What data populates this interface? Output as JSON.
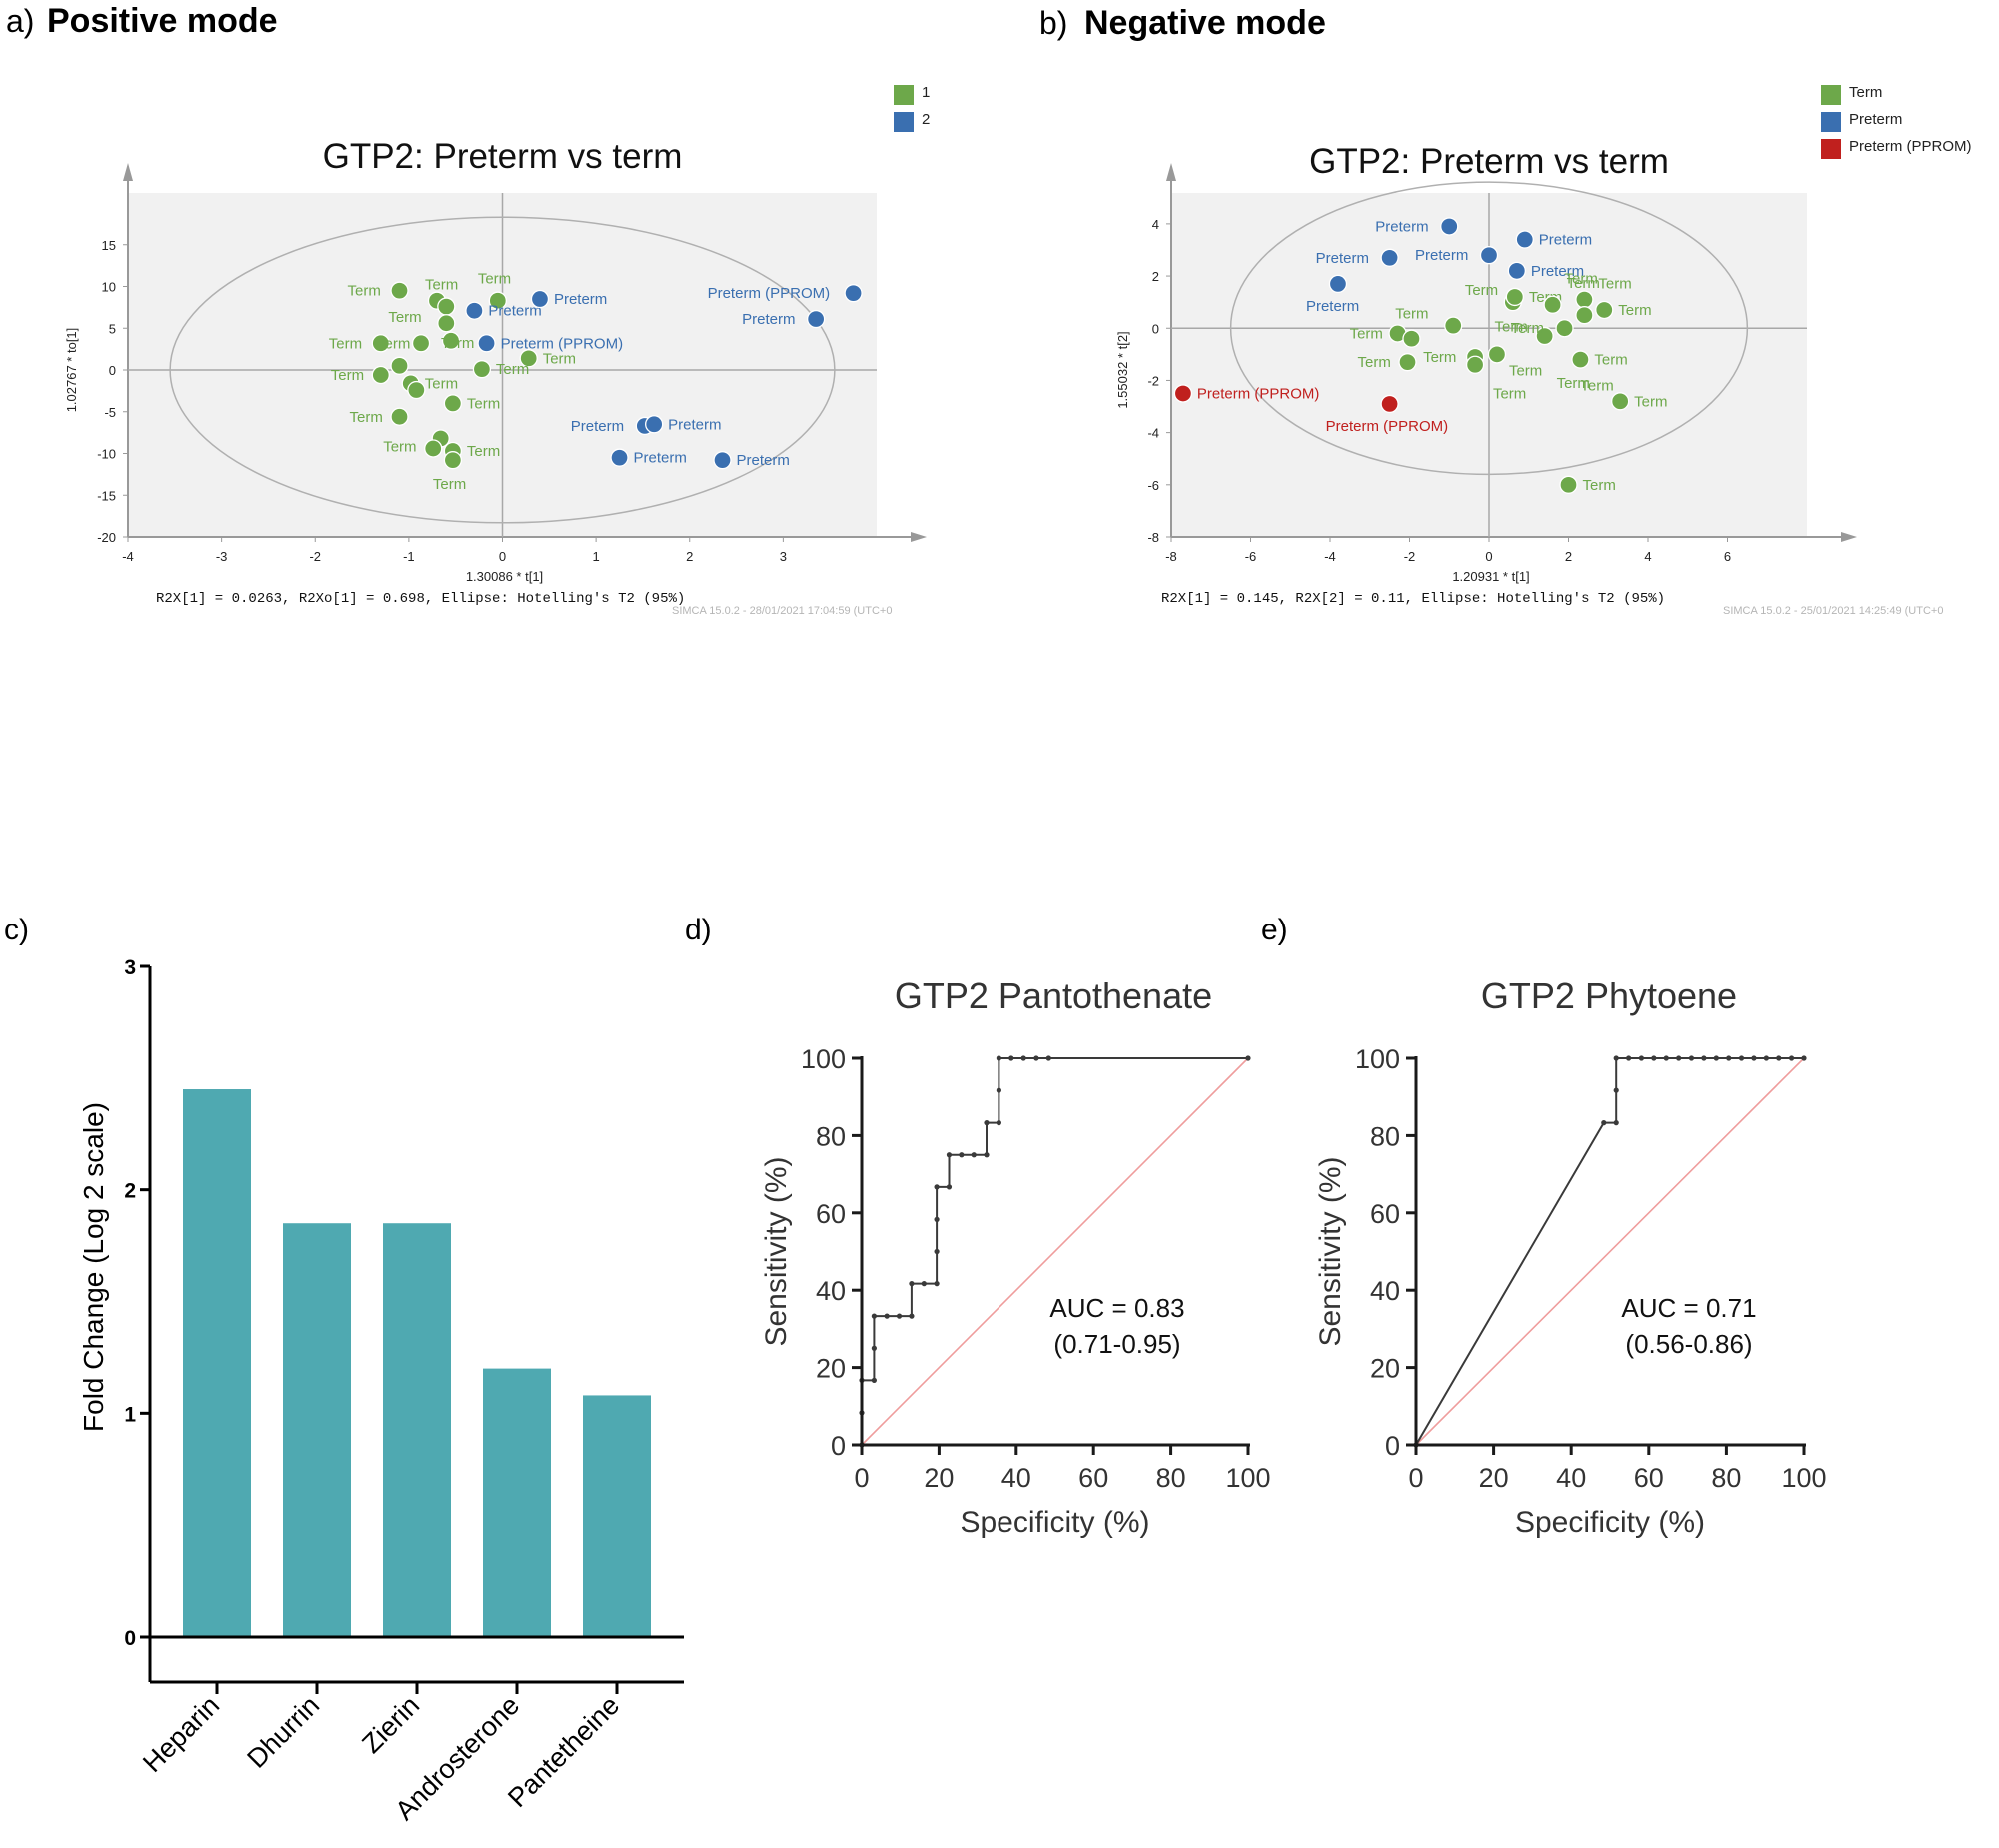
{
  "panels": {
    "a": "a)",
    "a_title": "Positive mode",
    "b": "b)",
    "b_title": "Negative mode",
    "c": "c)",
    "d": "d)",
    "e": "e)"
  },
  "chart_data": [
    {
      "id": "a",
      "type": "scatter",
      "title": "GTP2: Preterm vs term",
      "xlabel": "1.30086 * t[1]",
      "ylabel": "1.02767 * to[1]",
      "xlim": [
        -4,
        4
      ],
      "ylim": [
        -20,
        20
      ],
      "xticks": [
        -4,
        -3,
        -2,
        -1,
        0,
        1,
        2,
        3
      ],
      "yticks": [
        15,
        10,
        5,
        0,
        -5,
        -10,
        -15,
        -20
      ],
      "ellipse": {
        "cx": 0,
        "cy": 0,
        "rx": 3.55,
        "ry": 18.3
      },
      "legend": [
        {
          "label": "1",
          "color": "#6da84a"
        },
        {
          "label": "2",
          "color": "#3a6fb0"
        }
      ],
      "footer": "R2X[1] = 0.0263, R2Xo[1] = 0.698, Ellipse: Hotelling's T2 (95%)",
      "stamp": "SIMCA 15.0.2 - 28/01/2021 17:04:59 (UTC+0",
      "points": [
        {
          "x": -1.1,
          "y": 9.5,
          "g": 0,
          "label": "Term",
          "ldx": -52,
          "ldy": 0
        },
        {
          "x": -0.7,
          "y": 8.3,
          "g": 0,
          "label": "Term",
          "ldx": -12,
          "ldy": -16
        },
        {
          "x": -0.6,
          "y": 7.6,
          "g": 0,
          "label": "",
          "ldx": 0,
          "ldy": 0
        },
        {
          "x": -0.05,
          "y": 8.3,
          "g": 0,
          "label": "Term",
          "ldx": -20,
          "ldy": -22
        },
        {
          "x": -0.6,
          "y": 5.6,
          "g": 0,
          "label": "Term",
          "ldx": -58,
          "ldy": -6
        },
        {
          "x": -1.3,
          "y": 3.2,
          "g": 0,
          "label": "Term",
          "ldx": -52,
          "ldy": 0
        },
        {
          "x": -0.87,
          "y": 3.2,
          "g": 0,
          "label": "Term",
          "ldx": -44,
          "ldy": 0
        },
        {
          "x": -0.55,
          "y": 3.5,
          "g": 0,
          "label": "Term",
          "ldx": -10,
          "ldy": 2
        },
        {
          "x": 0.28,
          "y": 1.4,
          "g": 0,
          "label": "Term",
          "ldx": 14,
          "ldy": 0
        },
        {
          "x": -1.1,
          "y": 0.5,
          "g": 0,
          "label": "",
          "ldx": 0,
          "ldy": 0
        },
        {
          "x": -1.3,
          "y": -0.6,
          "g": 0,
          "label": "Term",
          "ldx": -50,
          "ldy": 0
        },
        {
          "x": -0.22,
          "y": 0.1,
          "g": 0,
          "label": "Term",
          "ldx": 14,
          "ldy": 0
        },
        {
          "x": -0.98,
          "y": -1.6,
          "g": 0,
          "label": "Term",
          "ldx": 14,
          "ldy": 0
        },
        {
          "x": -0.92,
          "y": -2.4,
          "g": 0,
          "label": "",
          "ldx": 0,
          "ldy": 0
        },
        {
          "x": -0.53,
          "y": -4.0,
          "g": 0,
          "label": "Term",
          "ldx": 14,
          "ldy": 0
        },
        {
          "x": -1.1,
          "y": -5.6,
          "g": 0,
          "label": "Term",
          "ldx": -50,
          "ldy": 0
        },
        {
          "x": -0.66,
          "y": -8.2,
          "g": 0,
          "label": "",
          "ldx": 0,
          "ldy": 0
        },
        {
          "x": -0.74,
          "y": -9.4,
          "g": 0,
          "label": "Term",
          "ldx": -50,
          "ldy": -2
        },
        {
          "x": -0.53,
          "y": -9.7,
          "g": 0,
          "label": "Term",
          "ldx": 14,
          "ldy": 0
        },
        {
          "x": -0.53,
          "y": -10.8,
          "g": 0,
          "label": "Term",
          "ldx": -20,
          "ldy": 24
        },
        {
          "x": -0.3,
          "y": 7.1,
          "g": 1,
          "label": "Preterm",
          "ldx": 14,
          "ldy": 0
        },
        {
          "x": 0.4,
          "y": 8.5,
          "g": 1,
          "label": "Preterm",
          "ldx": 14,
          "ldy": 0
        },
        {
          "x": -0.17,
          "y": 3.2,
          "g": 1,
          "label": "Preterm (PPROM)",
          "ldx": 14,
          "ldy": 0
        },
        {
          "x": 3.35,
          "y": 6.1,
          "g": 1,
          "label": "Preterm",
          "ldx": -74,
          "ldy": 0
        },
        {
          "x": 3.75,
          "y": 9.2,
          "g": 1,
          "label": "Preterm (PPROM)",
          "ldx": -146,
          "ldy": 0
        },
        {
          "x": 1.52,
          "y": -6.7,
          "g": 1,
          "label": "Preterm",
          "ldx": -74,
          "ldy": 0
        },
        {
          "x": 1.62,
          "y": -6.5,
          "g": 1,
          "label": "Preterm",
          "ldx": 14,
          "ldy": 0
        },
        {
          "x": 1.25,
          "y": -10.5,
          "g": 1,
          "label": "Preterm",
          "ldx": 14,
          "ldy": 0
        },
        {
          "x": 2.35,
          "y": -10.8,
          "g": 1,
          "label": "Preterm",
          "ldx": 14,
          "ldy": 0
        }
      ]
    },
    {
      "id": "b",
      "type": "scatter",
      "title": "GTP2: Preterm vs term",
      "xlabel": "1.20931 * t[1]",
      "ylabel": "1.55032 * t[2]",
      "xlim": [
        -8,
        8
      ],
      "ylim": [
        -8,
        4.8
      ],
      "xticks": [
        -8,
        -6,
        -4,
        -2,
        0,
        2,
        4,
        6
      ],
      "yticks": [
        4,
        2,
        0,
        -2,
        -4,
        -6,
        -8
      ],
      "ellipse": {
        "cx": 0,
        "cy": 0,
        "rx": 6.5,
        "ry": 5.6
      },
      "legend": [
        {
          "label": "Term",
          "color": "#6da84a"
        },
        {
          "label": "Preterm",
          "color": "#3a6fb0"
        },
        {
          "label": "Preterm (PPROM)",
          "color": "#c0201e"
        }
      ],
      "footer": "R2X[1] = 0.145, R2X[2] = 0.11, Ellipse: Hotelling's T2 (95%)",
      "stamp": "SIMCA 15.0.2 - 25/01/2021 14:25:49 (UTC+0",
      "points": [
        {
          "x": -1.0,
          "y": 3.9,
          "g": 1,
          "label": "Preterm",
          "ldx": -74,
          "ldy": 0
        },
        {
          "x": 0.9,
          "y": 3.4,
          "g": 1,
          "label": "Preterm",
          "ldx": 14,
          "ldy": 0
        },
        {
          "x": -2.5,
          "y": 2.7,
          "g": 1,
          "label": "Preterm",
          "ldx": -74,
          "ldy": 0
        },
        {
          "x": 0.0,
          "y": 2.8,
          "g": 1,
          "label": "Preterm",
          "ldx": -74,
          "ldy": 0
        },
        {
          "x": 0.7,
          "y": 2.2,
          "g": 1,
          "label": "Preterm",
          "ldx": 14,
          "ldy": 0
        },
        {
          "x": -3.8,
          "y": 1.7,
          "g": 1,
          "label": "Preterm",
          "ldx": -32,
          "ldy": 22
        },
        {
          "x": 0.6,
          "y": 1.0,
          "g": 0,
          "label": "Term",
          "ldx": -48,
          "ldy": -12
        },
        {
          "x": 0.65,
          "y": 1.2,
          "g": 0,
          "label": "Term",
          "ldx": 14,
          "ldy": 0
        },
        {
          "x": 1.6,
          "y": 0.9,
          "g": 0,
          "label": "Term",
          "ldx": 14,
          "ldy": -22
        },
        {
          "x": 2.4,
          "y": 1.1,
          "g": 0,
          "label": "Term",
          "ldx": 14,
          "ldy": -16
        },
        {
          "x": 2.9,
          "y": 0.7,
          "g": 0,
          "label": "Term",
          "ldx": 14,
          "ldy": 0
        },
        {
          "x": 2.4,
          "y": 0.5,
          "g": 0,
          "label": "",
          "ldx": 0,
          "ldy": 0
        },
        {
          "x": -0.9,
          "y": 0.1,
          "g": 0,
          "label": "Term",
          "ldx": -58,
          "ldy": -12
        },
        {
          "x": -2.3,
          "y": -0.2,
          "g": 0,
          "label": "Term",
          "ldx": -48,
          "ldy": 0
        },
        {
          "x": -1.95,
          "y": -0.4,
          "g": 0,
          "label": "",
          "ldx": 0,
          "ldy": 0
        },
        {
          "x": 1.4,
          "y": -0.3,
          "g": 0,
          "label": "Term",
          "ldx": -34,
          "ldy": -8
        },
        {
          "x": 1.9,
          "y": 0.0,
          "g": 0,
          "label": "Term",
          "ldx": -70,
          "ldy": -2
        },
        {
          "x": -2.05,
          "y": -1.3,
          "g": 0,
          "label": "Term",
          "ldx": -50,
          "ldy": 0
        },
        {
          "x": -0.35,
          "y": -1.1,
          "g": 0,
          "label": "Term",
          "ldx": -52,
          "ldy": 0
        },
        {
          "x": -0.35,
          "y": -1.4,
          "g": 0,
          "label": "",
          "ldx": 0,
          "ldy": 0
        },
        {
          "x": 0.2,
          "y": -1.0,
          "g": 0,
          "label": "Term",
          "ldx": 12,
          "ldy": 16
        },
        {
          "x": 2.3,
          "y": -1.2,
          "g": 0,
          "label": "Term",
          "ldx": 14,
          "ldy": 0
        },
        {
          "x": 3.3,
          "y": -2.8,
          "g": 0,
          "label": "Term",
          "ldx": 14,
          "ldy": 0
        },
        {
          "x": 2.0,
          "y": -6.0,
          "g": 0,
          "label": "Term",
          "ldx": 14,
          "ldy": 0
        },
        {
          "x": -7.7,
          "y": -2.5,
          "g": 2,
          "label": "Preterm (PPROM)",
          "ldx": 14,
          "ldy": 0
        },
        {
          "x": -2.5,
          "y": -2.9,
          "g": 2,
          "label": "Preterm (PPROM)",
          "ldx": -64,
          "ldy": 22
        }
      ],
      "extra_labels": [
        {
          "x": 1.7,
          "y": -2.1,
          "text": "Term"
        },
        {
          "x": 0.1,
          "y": -2.5,
          "text": "Term"
        },
        {
          "x": 2.3,
          "y": -2.2,
          "text": "Term"
        },
        {
          "x": 1.9,
          "y": 1.9,
          "text": "Term"
        }
      ]
    },
    {
      "id": "c",
      "type": "bar",
      "title": "",
      "categories": [
        "Heparin",
        "Dhurrin",
        "Zierin",
        "Androsterone",
        "Pantetheine"
      ],
      "values": [
        2.45,
        1.85,
        1.85,
        1.2,
        1.08
      ],
      "ylabel": "Fold Change (Log 2 scale)",
      "xlabel": "",
      "ylim": [
        0,
        3
      ],
      "yticks": [
        0,
        1,
        2,
        3
      ],
      "color": "#4fa9b1"
    },
    {
      "id": "d",
      "type": "line",
      "title": "GTP2 Pantothenate",
      "xlabel": "Specificity (%)",
      "ylabel": "Sensitivity (%)",
      "xlim": [
        0,
        100
      ],
      "ylim": [
        0,
        100
      ],
      "ticks": [
        0,
        20,
        40,
        60,
        80,
        100
      ],
      "annotation": [
        "AUC = 0.83",
        "(0.71-0.95)"
      ],
      "x": [
        0,
        0,
        0,
        3.2,
        3.2,
        3.2,
        6.5,
        9.7,
        12.9,
        12.9,
        16.1,
        19.4,
        19.4,
        19.4,
        19.4,
        22.6,
        22.6,
        25.8,
        29,
        32.3,
        32.3,
        35.5,
        35.5,
        35.5,
        38.7,
        41.9,
        45.2,
        48.4,
        100
      ],
      "y": [
        0,
        8.3,
        16.7,
        16.7,
        25,
        33.3,
        33.3,
        33.3,
        33.3,
        41.7,
        41.7,
        41.7,
        50,
        58.3,
        66.7,
        66.7,
        75,
        75,
        75,
        75,
        83.3,
        83.3,
        91.7,
        100,
        100,
        100,
        100,
        100,
        100
      ]
    },
    {
      "id": "e",
      "type": "line",
      "title": "GTP2 Phytoene",
      "xlabel": "Specificity (%)",
      "ylabel": "Sensitivity (%)",
      "xlim": [
        0,
        100
      ],
      "ylim": [
        0,
        100
      ],
      "ticks": [
        0,
        20,
        40,
        60,
        80,
        100
      ],
      "annotation": [
        "AUC = 0.71",
        "(0.56-0.86)"
      ],
      "x": [
        0,
        48.4,
        51.6,
        51.6,
        51.6,
        54.8,
        58.1,
        61.3,
        64.5,
        67.7,
        71,
        74.2,
        77.4,
        80.6,
        83.9,
        87.1,
        90.3,
        93.5,
        96.8,
        100
      ],
      "y": [
        0,
        83.3,
        83.3,
        91.7,
        100,
        100,
        100,
        100,
        100,
        100,
        100,
        100,
        100,
        100,
        100,
        100,
        100,
        100,
        100,
        100
      ]
    }
  ]
}
